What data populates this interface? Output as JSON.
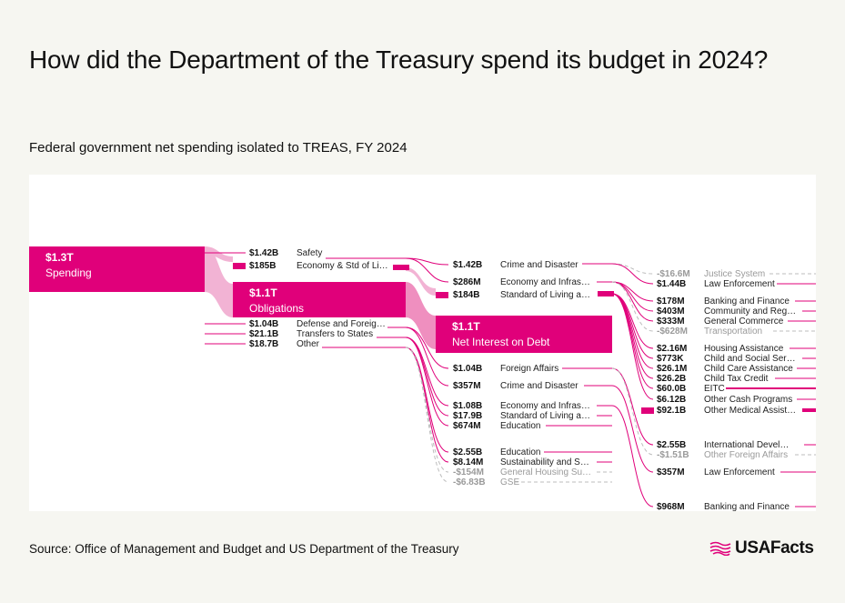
{
  "header": {
    "title": "How did the Department of the Treasury spend its budget in 2024?",
    "subtitle": "Federal government net spending isolated to TREAS, FY 2024"
  },
  "footer": {
    "source": "Source: Office of Management and Budget and US Department of the Treasury",
    "logo_text": "USAFacts"
  },
  "colors": {
    "accent": "#e0007a",
    "flow": "#f2b3d4",
    "flow_strong": "#ef8fbf",
    "negative": "#9a9a9a",
    "background": "#f6f6f1",
    "panel": "#ffffff"
  },
  "chart_data": {
    "type": "sankey",
    "title": "How did the Department of the Treasury spend its budget in 2024?",
    "subtitle": "Federal government net spending isolated to TREAS, FY 2024",
    "unit": "USD",
    "main_nodes": [
      {
        "id": "spending",
        "value_label": "$1.3T",
        "label": "Spending",
        "value": 1300000000000
      },
      {
        "id": "obligations",
        "value_label": "$1.1T",
        "label": "Obligations",
        "value": 1100000000000
      },
      {
        "id": "interest",
        "value_label": "$1.1T",
        "label": "Net Interest on Debt",
        "value": 1100000000000
      }
    ],
    "columns": [
      {
        "x": 1,
        "items": [
          {
            "value_label": "$1.42B",
            "label": "Safety",
            "value": 1420000000
          },
          {
            "value_label": "$185B",
            "label": "Economy & Std of Li…",
            "value": 185000000000
          },
          {
            "value_label": "$1.04B",
            "label": "Defense and Foreig…",
            "value": 1040000000
          },
          {
            "value_label": "$21.1B",
            "label": "Transfers to States",
            "value": 21100000000
          },
          {
            "value_label": "$18.7B",
            "label": "Other",
            "value": 18700000000
          }
        ]
      },
      {
        "x": 2,
        "items": [
          {
            "value_label": "$1.42B",
            "label": "Crime and Disaster",
            "value": 1420000000
          },
          {
            "value_label": "$286M",
            "label": "Economy and Infras…",
            "value": 286000000
          },
          {
            "value_label": "$184B",
            "label": "Standard of Living a…",
            "value": 184000000000
          },
          {
            "value_label": "$1.04B",
            "label": "Foreign Affairs",
            "value": 1040000000
          },
          {
            "value_label": "$357M",
            "label": "Crime and Disaster",
            "value": 357000000
          },
          {
            "value_label": "$1.08B",
            "label": "Economy and Infras…",
            "value": 1080000000
          },
          {
            "value_label": "$17.9B",
            "label": "Standard of Living a…",
            "value": 17900000000
          },
          {
            "value_label": "$674M",
            "label": "Education",
            "value": 674000000
          },
          {
            "value_label": "$2.55B",
            "label": "Education",
            "value": 2550000000
          },
          {
            "value_label": "$8.14M",
            "label": "Sustainability and S…",
            "value": 8140000
          },
          {
            "value_label": "-$154M",
            "label": "General Housing Su…",
            "value": -154000000
          },
          {
            "value_label": "-$6.83B",
            "label": "GSE",
            "value": -6830000000
          }
        ]
      },
      {
        "x": 3,
        "items": [
          {
            "value_label": "-$16.6M",
            "label": "Justice System",
            "value": -16600000
          },
          {
            "value_label": "$1.44B",
            "label": "Law Enforcement",
            "value": 1440000000
          },
          {
            "value_label": "$178M",
            "label": "Banking and Finance",
            "value": 178000000
          },
          {
            "value_label": "$403M",
            "label": "Community and Reg…",
            "value": 403000000
          },
          {
            "value_label": "$333M",
            "label": "General Commerce",
            "value": 333000000
          },
          {
            "value_label": "-$628M",
            "label": "Transportation",
            "value": -628000000
          },
          {
            "value_label": "$2.16M",
            "label": "Housing Assistance",
            "value": 2160000
          },
          {
            "value_label": "$773K",
            "label": "Child and Social Ser…",
            "value": 773000
          },
          {
            "value_label": "$26.1M",
            "label": "Child Care Assistance",
            "value": 26100000
          },
          {
            "value_label": "$26.2B",
            "label": "Child Tax Credit",
            "value": 26200000000
          },
          {
            "value_label": "$60.0B",
            "label": "EITC",
            "value": 60000000000
          },
          {
            "value_label": "$6.12B",
            "label": "Other Cash Programs",
            "value": 6120000000
          },
          {
            "value_label": "$92.1B",
            "label": "Other Medical Assist…",
            "value": 92100000000
          },
          {
            "value_label": "$2.55B",
            "label": "International Devel…",
            "value": 2550000000
          },
          {
            "value_label": "-$1.51B",
            "label": "Other Foreign Affairs",
            "value": -1510000000
          },
          {
            "value_label": "$357M",
            "label": "Law Enforcement",
            "value": 357000000
          },
          {
            "value_label": "$968M",
            "label": "Banking and Finance",
            "value": 968000000
          }
        ]
      }
    ]
  }
}
